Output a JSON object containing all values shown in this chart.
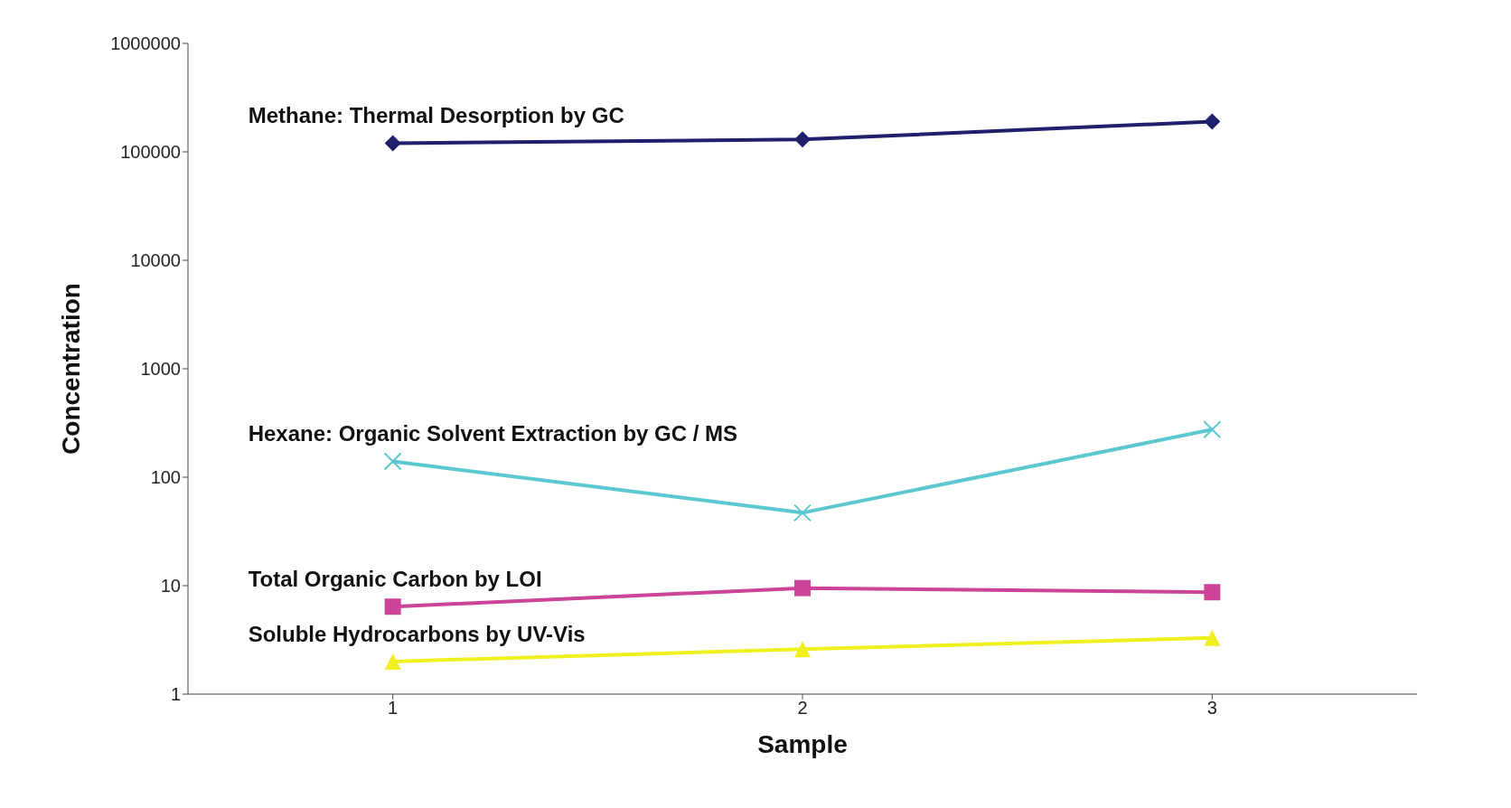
{
  "chart_data": {
    "type": "line",
    "xlabel": "Sample",
    "ylabel": "Concentration",
    "categories": [
      "1",
      "2",
      "3"
    ],
    "log": "y",
    "ylim": [
      1,
      1000000
    ],
    "yticks": [
      1,
      10,
      100,
      1000,
      10000,
      100000,
      1000000
    ],
    "line_style": "solid",
    "series": [
      {
        "name": "Methane: Thermal Desorption by GC",
        "color": "#1f1f6b",
        "marker": "diamond",
        "values": [
          120000,
          130000,
          190000
        ]
      },
      {
        "name": "Hexane: Organic Solvent Extraction by GC / MS",
        "color": "#5bc8d0",
        "marker": "cross",
        "values": [
          140,
          47,
          275
        ]
      },
      {
        "name": "Total Organic Carbon by LOI",
        "color": "#cc4499",
        "marker": "square",
        "values": [
          6.4,
          9.5,
          8.7
        ]
      },
      {
        "name": "Soluble Hydrocarbons by UV-Vis",
        "color": "#f0f020",
        "marker": "triangle",
        "values": [
          2,
          2.6,
          3.3
        ]
      }
    ]
  }
}
